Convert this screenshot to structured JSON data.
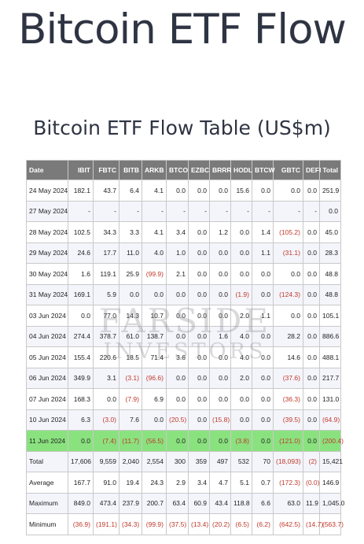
{
  "header": {
    "title": "Bitcoin ETF Flow",
    "table_title": "Bitcoin ETF Flow Table (US$m)"
  },
  "watermark": {
    "line1": "FARSIDE",
    "line2": "INVESTORS"
  },
  "colors": {
    "header_bg": "#7a7a7a",
    "highlight": "#8ae27f",
    "negative": "#c0392b"
  },
  "table": {
    "columns": [
      "Date",
      "IBIT",
      "FBTC",
      "BITB",
      "ARKB",
      "BTCO",
      "EZBC",
      "BRRR",
      "HODL",
      "BTCW",
      "GBTC",
      "DEFI",
      "Total"
    ],
    "rows": [
      [
        "24 May 2024",
        "182.1",
        "43.7",
        "6.4",
        "4.1",
        "0.0",
        "0.0",
        "0.0",
        "15.6",
        "0.0",
        "0.0",
        "0.0",
        "251.9"
      ],
      [
        "27 May 2024",
        "-",
        "-",
        "-",
        "-",
        "-",
        "-",
        "-",
        "-",
        "-",
        "-",
        "-",
        "0.0"
      ],
      [
        "28 May 2024",
        "102.5",
        "34.3",
        "3.3",
        "4.1",
        "3.4",
        "0.0",
        "1.2",
        "0.0",
        "1.4",
        "(105.2)",
        "0.0",
        "45.0"
      ],
      [
        "29 May 2024",
        "24.6",
        "17.7",
        "11.0",
        "4.0",
        "1.0",
        "0.0",
        "0.0",
        "0.0",
        "1.1",
        "(31.1)",
        "0.0",
        "28.3"
      ],
      [
        "30 May 2024",
        "1.6",
        "119.1",
        "25.9",
        "(99.9)",
        "2.1",
        "0.0",
        "0.0",
        "0.0",
        "0.0",
        "0.0",
        "0.0",
        "48.8"
      ],
      [
        "31 May 2024",
        "169.1",
        "5.9",
        "0.0",
        "0.0",
        "0.0",
        "0.0",
        "0.0",
        "(1.9)",
        "0.0",
        "(124.3)",
        "0.0",
        "48.8"
      ],
      [
        "03 Jun 2024",
        "0.0",
        "77.0",
        "14.3",
        "10.7",
        "0.0",
        "0.0",
        "0.0",
        "2.0",
        "1.1",
        "0.0",
        "0.0",
        "105.1"
      ],
      [
        "04 Jun 2024",
        "274.4",
        "378.7",
        "61.0",
        "138.7",
        "0.0",
        "0.0",
        "1.6",
        "4.0",
        "0.0",
        "28.2",
        "0.0",
        "886.6"
      ],
      [
        "05 Jun 2024",
        "155.4",
        "220.6",
        "18.5",
        "71.4",
        "3.6",
        "0.0",
        "0.0",
        "4.0",
        "0.0",
        "14.6",
        "0.0",
        "488.1"
      ],
      [
        "06 Jun 2024",
        "349.9",
        "3.1",
        "(3.1)",
        "(96.6)",
        "0.0",
        "0.0",
        "0.0",
        "2.0",
        "0.0",
        "(37.6)",
        "0.0",
        "217.7"
      ],
      [
        "07 Jun 2024",
        "168.3",
        "0.0",
        "(7.9)",
        "6.9",
        "0.0",
        "0.0",
        "0.0",
        "0.0",
        "0.0",
        "(36.3)",
        "0.0",
        "131.0"
      ],
      [
        "10 Jun 2024",
        "6.3",
        "(3.0)",
        "7.6",
        "0.0",
        "(20.5)",
        "0.0",
        "(15.8)",
        "0.0",
        "0.0",
        "(39.5)",
        "0.0",
        "(64.9)"
      ],
      [
        "11 Jun 2024",
        "0.0",
        "(7.4)",
        "(11.7)",
        "(56.5)",
        "0.0",
        "0.0",
        "0.0",
        "(3.8)",
        "0.0",
        "(121.0)",
        "0.0",
        "(200.4)"
      ],
      [
        "Total",
        "17,606",
        "9,559",
        "2,040",
        "2,554",
        "300",
        "359",
        "497",
        "532",
        "70",
        "(18,093)",
        "(2)",
        "15,421"
      ],
      [
        "Average",
        "167.7",
        "91.0",
        "19.4",
        "24.3",
        "2.9",
        "3.4",
        "4.7",
        "5.1",
        "0.7",
        "(172.3)",
        "(0.0)",
        "146.9"
      ],
      [
        "Maximum",
        "849.0",
        "473.4",
        "237.9",
        "200.7",
        "63.4",
        "60.9",
        "43.4",
        "118.8",
        "6.6",
        "63.0",
        "11.9",
        "1,045.0"
      ],
      [
        "Minimum",
        "(36.9)",
        "(191.1)",
        "(34.3)",
        "(99.9)",
        "(37.5)",
        "(13.4)",
        "(20.2)",
        "(6.5)",
        "(6.2)",
        "(642.5)",
        "(14.7)",
        "(563.7)"
      ]
    ],
    "highlight_row": 12
  }
}
